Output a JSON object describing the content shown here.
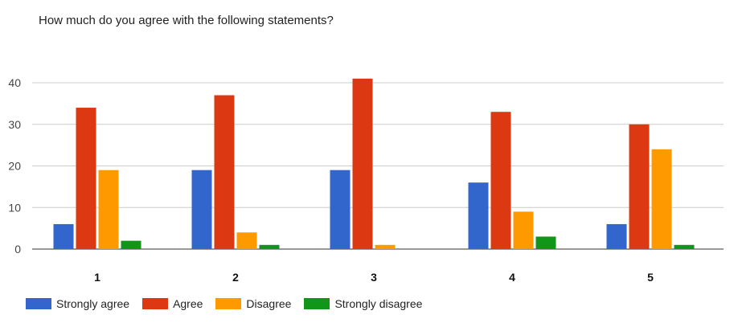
{
  "chart_data": {
    "type": "bar",
    "title": "How much do you agree with the following statements?",
    "categories": [
      "1",
      "2",
      "3",
      "4",
      "5"
    ],
    "series": [
      {
        "name": "Strongly agree",
        "color": "#3366cc",
        "values": [
          6,
          19,
          19,
          16,
          6
        ]
      },
      {
        "name": "Agree",
        "color": "#dc3912",
        "values": [
          34,
          37,
          41,
          33,
          30
        ]
      },
      {
        "name": "Disagree",
        "color": "#ff9900",
        "values": [
          19,
          4,
          1,
          9,
          24
        ]
      },
      {
        "name": "Strongly disagree",
        "color": "#109618",
        "values": [
          2,
          1,
          0,
          3,
          1
        ]
      }
    ],
    "y_ticks": [
      "0",
      "10",
      "20",
      "30",
      "40"
    ],
    "ylim": [
      0,
      40
    ],
    "grid": true,
    "legend_position": "bottom"
  }
}
